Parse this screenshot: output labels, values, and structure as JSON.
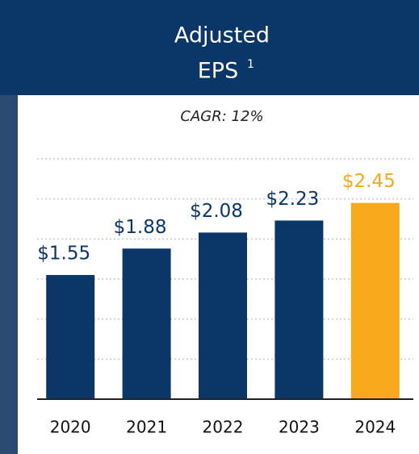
{
  "chart_data": {
    "type": "bar",
    "title": [
      "Adjusted",
      "EPS"
    ],
    "title_footnote": "1",
    "subtitle": "CAGR: 12%",
    "categories": [
      "2020",
      "2021",
      "2022",
      "2023",
      "2024"
    ],
    "values": [
      1.55,
      1.88,
      2.08,
      2.23,
      2.45
    ],
    "value_labels": [
      "$1.55",
      "$1.88",
      "$2.08",
      "$2.23",
      "$2.45"
    ],
    "colors": [
      "#0b3668",
      "#0b3668",
      "#0b3668",
      "#0b3668",
      "#f7a81b"
    ],
    "header_color": "#0b3668",
    "ylim": [
      0,
      3
    ],
    "yticks": [
      0,
      0.5,
      1,
      1.5,
      2,
      2.5,
      3
    ],
    "grid": true
  }
}
